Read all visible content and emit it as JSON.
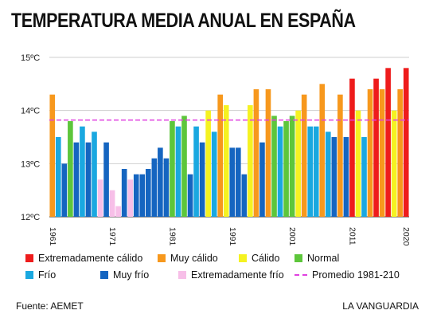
{
  "title": "TEMPERATURA MEDIA ANUAL EN ESPAÑA",
  "chart_data": {
    "type": "bar",
    "ylim": [
      12,
      15
    ],
    "y_ticks": [
      {
        "value": 12,
        "label": "12ºC"
      },
      {
        "value": 13,
        "label": "13ºC"
      },
      {
        "value": 14,
        "label": "14ºC"
      },
      {
        "value": 15,
        "label": "15ºC"
      }
    ],
    "x_tick_labels": [
      "1961",
      "1971",
      "1981",
      "1991",
      "2001",
      "2011",
      "2020"
    ],
    "grid": true,
    "reference_line": {
      "value": 13.82,
      "label": "Promedio 1981-210",
      "color": "#e040e0"
    },
    "categories_legend": [
      {
        "key": "extremo_calido",
        "label": "Extremadamente cálido",
        "color": "#ee1c1c"
      },
      {
        "key": "muy_calido",
        "label": "Muy cálido",
        "color": "#f7981d"
      },
      {
        "key": "calido",
        "label": "Cálido",
        "color": "#f5f221"
      },
      {
        "key": "normal",
        "label": "Normal",
        "color": "#5dc63b"
      },
      {
        "key": "frio",
        "label": "Frío",
        "color": "#1aa8e0"
      },
      {
        "key": "muy_frio",
        "label": "Muy frío",
        "color": "#1565c0"
      },
      {
        "key": "extremo_frio",
        "label": "Extremadamente frío",
        "color": "#f7bfe8"
      }
    ],
    "bars": [
      {
        "year": 1961,
        "value": 14.3,
        "class": "muy_calido"
      },
      {
        "year": 1962,
        "value": 13.5,
        "class": "frio"
      },
      {
        "year": 1963,
        "value": 13.0,
        "class": "muy_frio"
      },
      {
        "year": 1964,
        "value": 13.8,
        "class": "normal"
      },
      {
        "year": 1965,
        "value": 13.4,
        "class": "muy_frio"
      },
      {
        "year": 1966,
        "value": 13.7,
        "class": "frio"
      },
      {
        "year": 1967,
        "value": 13.4,
        "class": "muy_frio"
      },
      {
        "year": 1968,
        "value": 13.6,
        "class": "frio"
      },
      {
        "year": 1969,
        "value": 12.7,
        "class": "extremo_frio"
      },
      {
        "year": 1970,
        "value": 13.4,
        "class": "muy_frio"
      },
      {
        "year": 1971,
        "value": 12.5,
        "class": "extremo_frio"
      },
      {
        "year": 1972,
        "value": 12.2,
        "class": "extremo_frio"
      },
      {
        "year": 1973,
        "value": 12.9,
        "class": "muy_frio"
      },
      {
        "year": 1974,
        "value": 12.7,
        "class": "extremo_frio"
      },
      {
        "year": 1975,
        "value": 12.8,
        "class": "muy_frio"
      },
      {
        "year": 1976,
        "value": 12.8,
        "class": "muy_frio"
      },
      {
        "year": 1977,
        "value": 12.9,
        "class": "muy_frio"
      },
      {
        "year": 1978,
        "value": 13.1,
        "class": "muy_frio"
      },
      {
        "year": 1979,
        "value": 13.3,
        "class": "muy_frio"
      },
      {
        "year": 1980,
        "value": 13.1,
        "class": "muy_frio"
      },
      {
        "year": 1981,
        "value": 13.8,
        "class": "normal"
      },
      {
        "year": 1982,
        "value": 13.7,
        "class": "frio"
      },
      {
        "year": 1983,
        "value": 13.9,
        "class": "normal"
      },
      {
        "year": 1984,
        "value": 12.8,
        "class": "muy_frio"
      },
      {
        "year": 1985,
        "value": 13.7,
        "class": "frio"
      },
      {
        "year": 1986,
        "value": 13.4,
        "class": "muy_frio"
      },
      {
        "year": 1987,
        "value": 14.0,
        "class": "calido"
      },
      {
        "year": 1988,
        "value": 13.6,
        "class": "frio"
      },
      {
        "year": 1989,
        "value": 14.3,
        "class": "muy_calido"
      },
      {
        "year": 1990,
        "value": 14.1,
        "class": "calido"
      },
      {
        "year": 1991,
        "value": 13.3,
        "class": "muy_frio"
      },
      {
        "year": 1992,
        "value": 13.3,
        "class": "muy_frio"
      },
      {
        "year": 1993,
        "value": 12.8,
        "class": "muy_frio"
      },
      {
        "year": 1994,
        "value": 14.1,
        "class": "calido"
      },
      {
        "year": 1995,
        "value": 14.4,
        "class": "muy_calido"
      },
      {
        "year": 1996,
        "value": 13.4,
        "class": "muy_frio"
      },
      {
        "year": 1997,
        "value": 14.4,
        "class": "muy_calido"
      },
      {
        "year": 1998,
        "value": 13.9,
        "class": "normal"
      },
      {
        "year": 1999,
        "value": 13.7,
        "class": "frio"
      },
      {
        "year": 2000,
        "value": 13.8,
        "class": "normal"
      },
      {
        "year": 2001,
        "value": 13.9,
        "class": "normal"
      },
      {
        "year": 2002,
        "value": 14.0,
        "class": "calido"
      },
      {
        "year": 2003,
        "value": 14.3,
        "class": "muy_calido"
      },
      {
        "year": 2004,
        "value": 13.7,
        "class": "frio"
      },
      {
        "year": 2005,
        "value": 13.7,
        "class": "frio"
      },
      {
        "year": 2006,
        "value": 14.5,
        "class": "muy_calido"
      },
      {
        "year": 2007,
        "value": 13.6,
        "class": "frio"
      },
      {
        "year": 2008,
        "value": 13.5,
        "class": "muy_frio"
      },
      {
        "year": 2009,
        "value": 14.3,
        "class": "muy_calido"
      },
      {
        "year": 2010,
        "value": 13.5,
        "class": "muy_frio"
      },
      {
        "year": 2011,
        "value": 14.6,
        "class": "extremo_calido"
      },
      {
        "year": 2012,
        "value": 14.0,
        "class": "calido"
      },
      {
        "year": 2013,
        "value": 13.5,
        "class": "frio"
      },
      {
        "year": 2014,
        "value": 14.4,
        "class": "muy_calido"
      },
      {
        "year": 2015,
        "value": 14.6,
        "class": "extremo_calido"
      },
      {
        "year": 2016,
        "value": 14.4,
        "class": "muy_calido"
      },
      {
        "year": 2017,
        "value": 14.8,
        "class": "extremo_calido"
      },
      {
        "year": 2018,
        "value": 14.0,
        "class": "calido"
      },
      {
        "year": 2019,
        "value": 14.4,
        "class": "muy_calido"
      },
      {
        "year": 2020,
        "value": 14.8,
        "class": "extremo_calido"
      }
    ]
  },
  "legend": {
    "extremo_calido": "Extremadamente cálido",
    "muy_calido": "Muy cálido",
    "calido": "Cálido",
    "normal": "Normal",
    "frio": "Frío",
    "muy_frio": "Muy frío",
    "extremo_frio": "Extremadamente frío",
    "promedio": "Promedio 1981-210"
  },
  "footer": {
    "source": "Fuente:  AEMET",
    "brand": "LA VANGUARDIA"
  }
}
